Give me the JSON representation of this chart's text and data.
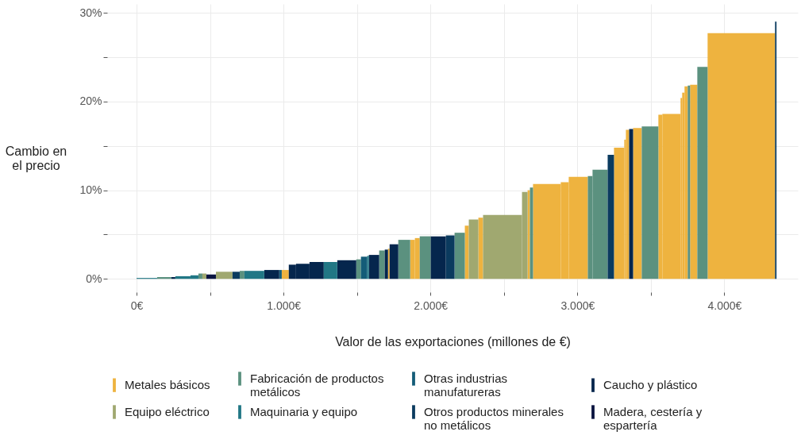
{
  "chart_data": {
    "type": "histogram",
    "xlabel": "Valor de las exportaciones (millones de €)",
    "ylabel": "Cambio en el precio",
    "bins": [
      0,
      140,
      237,
      264,
      367,
      421,
      448,
      475,
      540,
      653,
      702,
      734,
      869,
      971,
      988,
      1036,
      1085,
      1177,
      1274,
      1366,
      1495,
      1527,
      1570,
      1581,
      1651,
      1689,
      1711,
      1722,
      1781,
      1862,
      1894,
      1927,
      2002,
      2105,
      2164,
      2234,
      2261,
      2326,
      2358,
      2623,
      2661,
      2677,
      2698,
      2887,
      2941,
      3071,
      3103,
      3206,
      3249,
      3319,
      3330,
      3352,
      3379,
      3438,
      3551,
      3578,
      3702,
      3713,
      3729,
      3751,
      3767,
      3816,
      3886,
      4345,
      4355
    ],
    "series": [
      {
        "name": "Metales básicos",
        "color": "#eeb33f",
        "values": [
          null,
          null,
          null,
          null,
          null,
          null,
          null,
          null,
          null,
          null,
          null,
          null,
          null,
          null,
          1.0,
          null,
          null,
          null,
          null,
          null,
          null,
          null,
          null,
          null,
          null,
          null,
          3.4,
          null,
          null,
          4.4,
          4.6,
          null,
          null,
          null,
          null,
          6.0,
          null,
          6.9,
          null,
          null,
          10.0,
          null,
          10.7,
          10.9,
          11.5,
          null,
          null,
          null,
          14.8,
          15.7,
          16.8,
          null,
          17.0,
          null,
          18.5,
          18.6,
          20.4,
          21.0,
          21.7,
          null,
          21.9,
          null,
          27.7,
          null
        ]
      },
      {
        "name": "Fabricación de productos metálicos",
        "color": "#5b917f",
        "values": [
          null,
          0.2,
          null,
          null,
          null,
          0.6,
          null,
          null,
          null,
          null,
          0.9,
          null,
          null,
          null,
          null,
          null,
          null,
          null,
          null,
          null,
          2.2,
          null,
          null,
          null,
          3.2,
          null,
          null,
          null,
          4.4,
          null,
          null,
          4.8,
          null,
          null,
          5.2,
          null,
          null,
          null,
          null,
          null,
          null,
          10.3,
          null,
          null,
          null,
          11.6,
          12.3,
          null,
          null,
          null,
          null,
          null,
          null,
          17.2,
          null,
          null,
          null,
          null,
          null,
          21.8,
          null,
          23.9,
          null,
          null
        ]
      },
      {
        "name": "Otras industrias manufatureras",
        "color": "#145c78",
        "values": [
          null,
          null,
          null,
          null,
          null,
          null,
          null,
          null,
          null,
          null,
          null,
          null,
          null,
          1.0,
          null,
          null,
          null,
          null,
          null,
          null,
          null,
          2.5,
          null,
          null,
          null,
          null,
          null,
          null,
          null,
          null,
          null,
          null,
          null,
          null,
          null,
          null,
          null,
          null,
          null,
          null,
          null,
          null,
          null,
          null,
          null,
          null,
          null,
          null,
          null,
          null,
          null,
          null,
          null,
          null,
          null,
          null,
          null,
          null,
          null,
          null,
          null,
          null,
          null,
          null
        ]
      },
      {
        "name": "Caucho y plástico",
        "color": "#05264d",
        "values": [
          null,
          null,
          0.2,
          null,
          null,
          null,
          null,
          null,
          null,
          null,
          null,
          null,
          1.0,
          null,
          null,
          1.6,
          1.7,
          1.9,
          null,
          2.1,
          null,
          null,
          null,
          2.7,
          null,
          3.3,
          null,
          3.9,
          null,
          null,
          null,
          null,
          4.8,
          null,
          null,
          null,
          null,
          null,
          null,
          null,
          null,
          null,
          null,
          null,
          null,
          null,
          null,
          null,
          null,
          null,
          null,
          16.9,
          null,
          null,
          null,
          null,
          null,
          null,
          null,
          null,
          null,
          null,
          null,
          null
        ]
      },
      {
        "name": "Equipo eléctrico",
        "color": "#a0a870",
        "values": [
          null,
          null,
          null,
          null,
          null,
          null,
          0.6,
          null,
          0.8,
          null,
          null,
          null,
          null,
          null,
          null,
          null,
          null,
          null,
          null,
          null,
          null,
          null,
          null,
          null,
          null,
          null,
          null,
          null,
          null,
          null,
          null,
          null,
          null,
          null,
          null,
          null,
          6.7,
          null,
          7.2,
          9.8,
          null,
          null,
          null,
          null,
          null,
          null,
          null,
          null,
          null,
          null,
          null,
          null,
          null,
          null,
          null,
          null,
          null,
          null,
          null,
          null,
          null,
          null,
          null,
          null
        ]
      },
      {
        "name": "Maquinaria y equipo",
        "color": "#217785",
        "values": [
          0.1,
          null,
          null,
          0.3,
          0.4,
          null,
          null,
          null,
          null,
          null,
          null,
          0.9,
          null,
          null,
          null,
          null,
          null,
          null,
          1.9,
          null,
          null,
          null,
          2.6,
          null,
          null,
          null,
          null,
          null,
          null,
          null,
          null,
          null,
          null,
          null,
          null,
          null,
          null,
          null,
          null,
          null,
          null,
          null,
          null,
          null,
          null,
          null,
          null,
          null,
          null,
          null,
          null,
          null,
          null,
          null,
          null,
          null,
          null,
          null,
          null,
          null,
          null,
          null,
          null,
          null
        ]
      },
      {
        "name": "Otros productos minerales no metálicos",
        "color": "#0b3b5f",
        "values": [
          null,
          null,
          null,
          null,
          null,
          null,
          null,
          null,
          null,
          0.8,
          null,
          null,
          null,
          null,
          null,
          null,
          null,
          null,
          null,
          null,
          null,
          null,
          null,
          null,
          null,
          null,
          null,
          null,
          null,
          null,
          null,
          null,
          null,
          4.9,
          null,
          null,
          null,
          null,
          null,
          null,
          null,
          null,
          null,
          null,
          null,
          null,
          null,
          14.0,
          null,
          null,
          null,
          null,
          null,
          null,
          null,
          null,
          null,
          null,
          null,
          null,
          null,
          null,
          null,
          29.0
        ]
      },
      {
        "name": "Madera, cestería y espartería",
        "color": "#0a1440",
        "values": [
          null,
          null,
          null,
          null,
          null,
          null,
          null,
          0.5,
          null,
          null,
          null,
          null,
          null,
          null,
          null,
          null,
          null,
          null,
          null,
          null,
          null,
          null,
          null,
          null,
          null,
          null,
          null,
          null,
          null,
          null,
          null,
          null,
          null,
          null,
          null,
          null,
          null,
          null,
          null,
          null,
          null,
          null,
          null,
          null,
          null,
          null,
          null,
          null,
          null,
          null,
          null,
          null,
          null,
          null,
          null,
          null,
          null,
          null,
          null,
          null,
          null,
          null,
          null,
          null
        ]
      }
    ],
    "xlim": [
      -200,
      4500
    ],
    "xticks": [
      {
        "value": 0,
        "label": "0€"
      },
      {
        "value": 500,
        "label": null
      },
      {
        "value": 1000,
        "label": "1.000€"
      },
      {
        "value": 1500,
        "label": null
      },
      {
        "value": 2000,
        "label": "2.000€"
      },
      {
        "value": 2500,
        "label": null
      },
      {
        "value": 3000,
        "label": "3.000€"
      },
      {
        "value": 3500,
        "label": null
      },
      {
        "value": 4000,
        "label": "4.000€"
      }
    ],
    "ylim": [
      -1.5,
      31
    ],
    "yticks": [
      {
        "value": 0,
        "label": "0%"
      },
      {
        "value": 5,
        "label": null
      },
      {
        "value": 10,
        "label": "10%"
      },
      {
        "value": 15,
        "label": null
      },
      {
        "value": 20,
        "label": "20%"
      },
      {
        "value": 25,
        "label": null
      },
      {
        "value": 30,
        "label": "30%"
      }
    ],
    "grid": true,
    "legend": "bottom"
  }
}
